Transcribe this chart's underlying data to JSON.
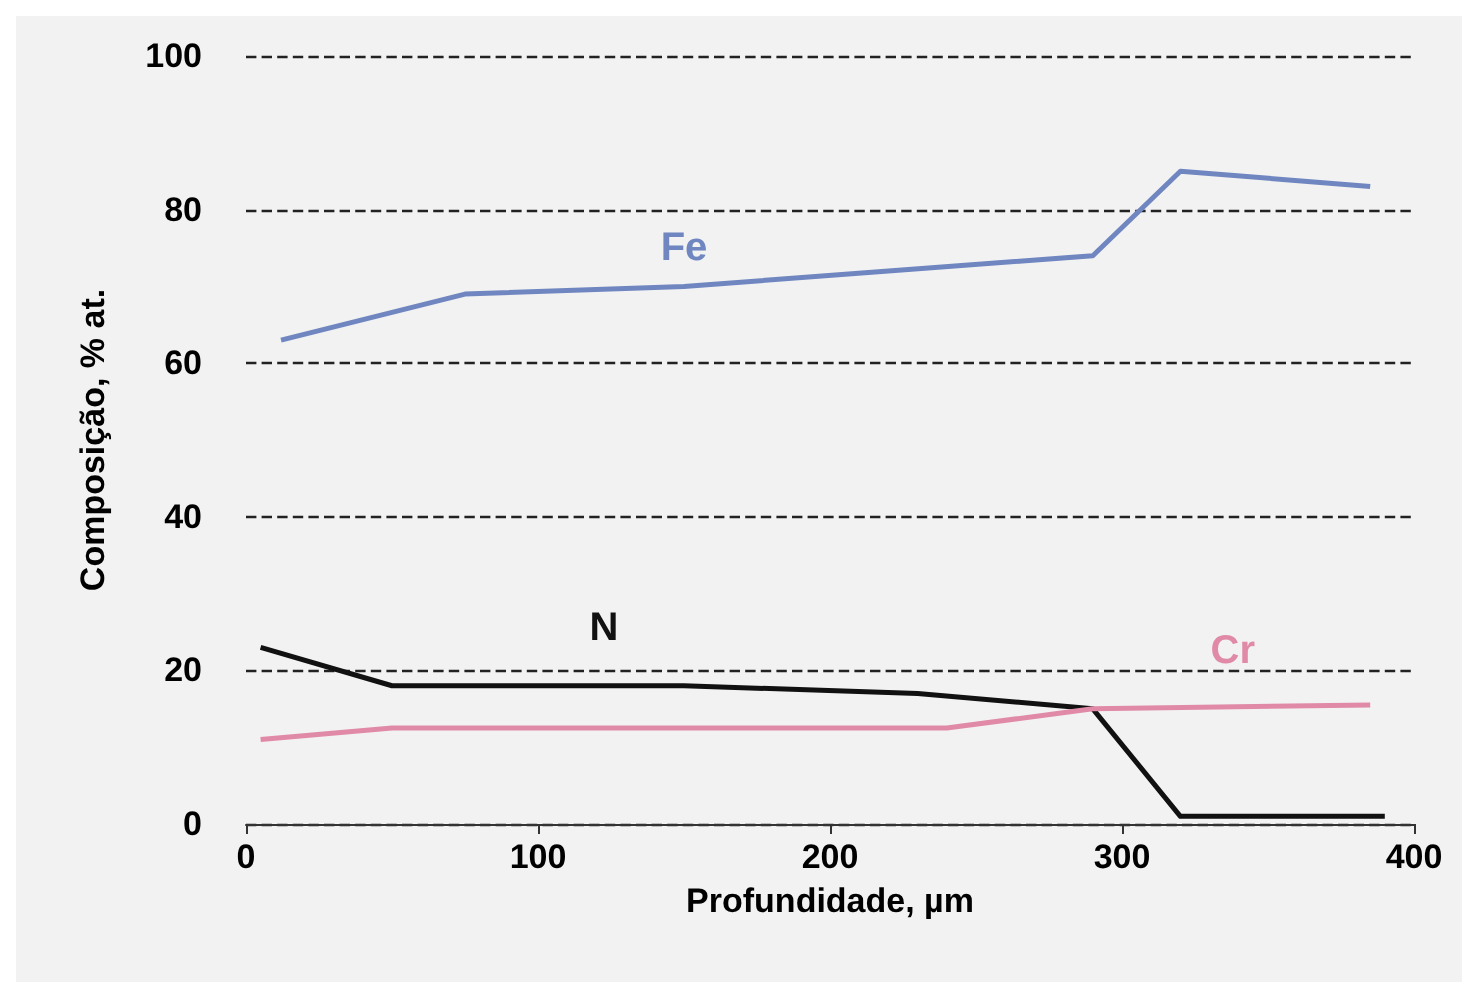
{
  "chart_data": {
    "type": "line",
    "xlabel": "Profundidade, µm",
    "ylabel": "Composição, % at.",
    "xlim": [
      0,
      400
    ],
    "xticks": [
      0,
      100,
      200,
      300,
      400
    ],
    "ylim": [
      0,
      100
    ],
    "yticks": [
      0,
      20,
      40,
      60,
      80,
      100
    ],
    "grid": "y",
    "legend": false,
    "marker": "none",
    "series": [
      {
        "name": "Fe",
        "color": "#6f86c0",
        "x": [
          12,
          75,
          150,
          220,
          290,
          320,
          385
        ],
        "values": [
          63,
          69,
          70,
          72,
          74,
          85,
          83
        ]
      },
      {
        "name": "N",
        "color": "#111111",
        "x": [
          5,
          50,
          150,
          230,
          290,
          320,
          390
        ],
        "values": [
          23,
          18,
          18,
          17,
          15,
          1,
          1
        ]
      },
      {
        "name": "Cr",
        "color": "#e08aa8",
        "x": [
          5,
          50,
          240,
          290,
          385
        ],
        "values": [
          11,
          12.5,
          12.5,
          15,
          15.5
        ]
      }
    ]
  }
}
